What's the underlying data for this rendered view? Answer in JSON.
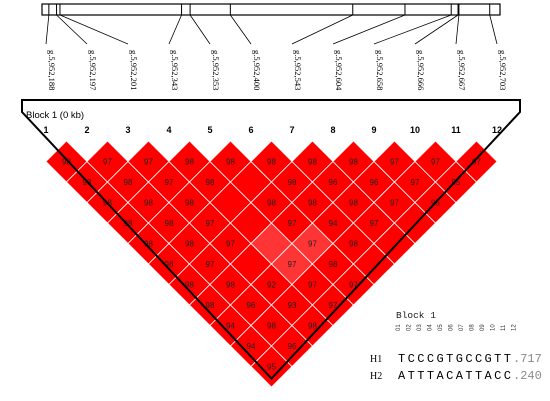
{
  "snp_labels": [
    "g.5,952,188",
    "g.5,952,197",
    "g.5,952,201",
    "g.5,952,343",
    "g.5,952,353",
    "g.5,952,400",
    "g.5,952,543",
    "g.5,952,604",
    "g.5,952,658",
    "g.5,952,666",
    "g.5,952,667",
    "g.5,952,703"
  ],
  "snp_indices": [
    "1",
    "2",
    "3",
    "4",
    "5",
    "6",
    "7",
    "8",
    "9",
    "10",
    "11",
    "12"
  ],
  "snp_chromosome_positions": [
    188,
    197,
    201,
    343,
    353,
    400,
    543,
    604,
    658,
    666,
    667,
    703
  ],
  "block_label": "Block 1 (0 kb)",
  "colors": {
    "ld_cell": "#ff0000",
    "ld_cell_light": "#ff3535",
    "outline": "#000000",
    "background": "#ffffff"
  },
  "ld_values": [
    [
      "98",
      "97",
      "97",
      "98",
      "98",
      "98",
      "98",
      "98",
      "97",
      "97",
      "97"
    ],
    [
      "98",
      "98",
      "97",
      "98",
      "",
      "98",
      "96",
      "96",
      "97",
      "95"
    ],
    [
      "98",
      "98",
      "98",
      "",
      "98",
      "98",
      "98",
      "97",
      "95"
    ],
    [
      "98",
      "98",
      "97",
      "",
      "97",
      "94",
      "97",
      ""
    ],
    [
      "98",
      "98",
      "97",
      "",
      "97",
      "98",
      ""
    ],
    [
      "98",
      "97",
      "",
      "97",
      "98"
    ],
    [
      "98",
      "98",
      "92",
      "97",
      "97"
    ],
    [
      "98",
      "96",
      "93",
      "97"
    ],
    [
      "94",
      "98",
      "98"
    ],
    [
      "94",
      "96"
    ],
    [
      "95",
      "99"
    ],
    [
      "97"
    ]
  ],
  "haplotypes": {
    "title": "Block 1",
    "column_indices": [
      "01",
      "02",
      "03",
      "04",
      "05",
      "06",
      "07",
      "08",
      "09",
      "10",
      "11",
      "12"
    ],
    "rows": [
      {
        "name": "H1",
        "sequence": "TCCCGTGCCGTT",
        "frequency": ".717"
      },
      {
        "name": "H2",
        "sequence": "ATTTACATTACC",
        "frequency": ".240"
      }
    ]
  }
}
